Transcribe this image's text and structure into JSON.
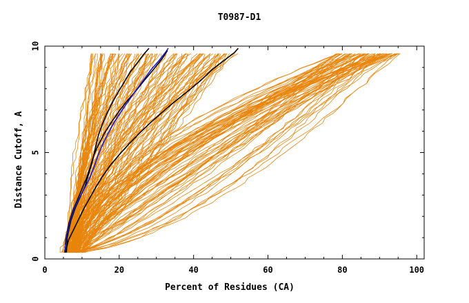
{
  "chart_data": {
    "type": "line",
    "title": "T0987-D1",
    "xlabel": "Percent of Residues (CA)",
    "ylabel": "Distance Cutoff, A",
    "xlim": [
      0,
      102
    ],
    "ylim": [
      0,
      10
    ],
    "xticks": [
      "0",
      "20",
      "40",
      "60",
      "80",
      "100"
    ],
    "yticks": [
      "0",
      "5",
      "10"
    ],
    "grid": false,
    "colors": {
      "bulk": "#e8850c",
      "highlight_black": "#000000",
      "highlight_blue": "#1a1acc"
    },
    "bundles": [
      {
        "name": "",
        "color": "#e8850c",
        "count": 55,
        "x0": [
          5.5,
          8.0
        ],
        "x_at_10": [
          12.0,
          30.0
        ]
      },
      {
        "name": "",
        "color": "#e8850c",
        "count": 55,
        "x0": [
          6.0,
          9.0
        ],
        "x_at_10": [
          28.0,
          52.0
        ]
      },
      {
        "name": "",
        "color": "#e8850c",
        "count": 70,
        "x0": [
          4.0,
          11.0
        ],
        "x_at_10": [
          78.0,
          95.5
        ]
      }
    ],
    "series": [
      {
        "name": "",
        "color": "#000000",
        "x": [
          5.8,
          6.0,
          7.0,
          8.2,
          9.5,
          10.8,
          11.8,
          12.8,
          13.6,
          14.4,
          15.4,
          16.6,
          18.0,
          19.6,
          21.3,
          23.0,
          24.8,
          26.5,
          28.0
        ],
        "y": [
          0.3,
          1.0,
          1.8,
          2.4,
          2.9,
          3.4,
          4.0,
          4.6,
          5.2,
          5.8,
          6.3,
          6.8,
          7.3,
          7.8,
          8.3,
          8.8,
          9.2,
          9.6,
          9.9
        ]
      },
      {
        "name": "",
        "color": "#000000",
        "x": [
          5.4,
          5.6,
          6.5,
          7.6,
          8.8,
          10.0,
          11.2,
          12.2,
          13.2,
          14.5,
          16.0,
          17.8,
          19.8,
          22.0,
          24.5,
          26.8,
          29.2,
          31.5,
          33.0
        ],
        "y": [
          0.3,
          0.9,
          1.7,
          2.3,
          2.8,
          3.3,
          3.8,
          4.3,
          4.9,
          5.4,
          5.9,
          6.4,
          6.9,
          7.4,
          7.9,
          8.4,
          8.9,
          9.4,
          9.8
        ]
      },
      {
        "name": "",
        "color": "#000000",
        "x": [
          5.5,
          6.4,
          7.8,
          9.2,
          10.6,
          12.2,
          13.8,
          15.6,
          17.6,
          20.0,
          22.6,
          25.4,
          28.4,
          31.6,
          35.0,
          38.6,
          42.0,
          45.0,
          48.0,
          51.0,
          52.0
        ],
        "y": [
          0.3,
          0.9,
          1.4,
          1.9,
          2.4,
          2.9,
          3.4,
          3.9,
          4.4,
          4.9,
          5.4,
          5.9,
          6.4,
          6.9,
          7.4,
          7.9,
          8.4,
          8.9,
          9.3,
          9.7,
          9.9
        ]
      },
      {
        "name": "",
        "color": "#1a1acc",
        "x": [
          5.3,
          5.8,
          6.8,
          8.0,
          9.4,
          10.9,
          12.3,
          13.4,
          14.4,
          15.6,
          17.0,
          18.6,
          20.4,
          22.4,
          24.4,
          26.5,
          28.6,
          30.6,
          32.4,
          33.2
        ],
        "y": [
          0.3,
          1.0,
          1.8,
          2.4,
          2.9,
          3.4,
          3.9,
          4.4,
          4.9,
          5.4,
          5.9,
          6.4,
          6.9,
          7.4,
          7.9,
          8.4,
          8.9,
          9.3,
          9.7,
          9.9
        ]
      }
    ]
  }
}
